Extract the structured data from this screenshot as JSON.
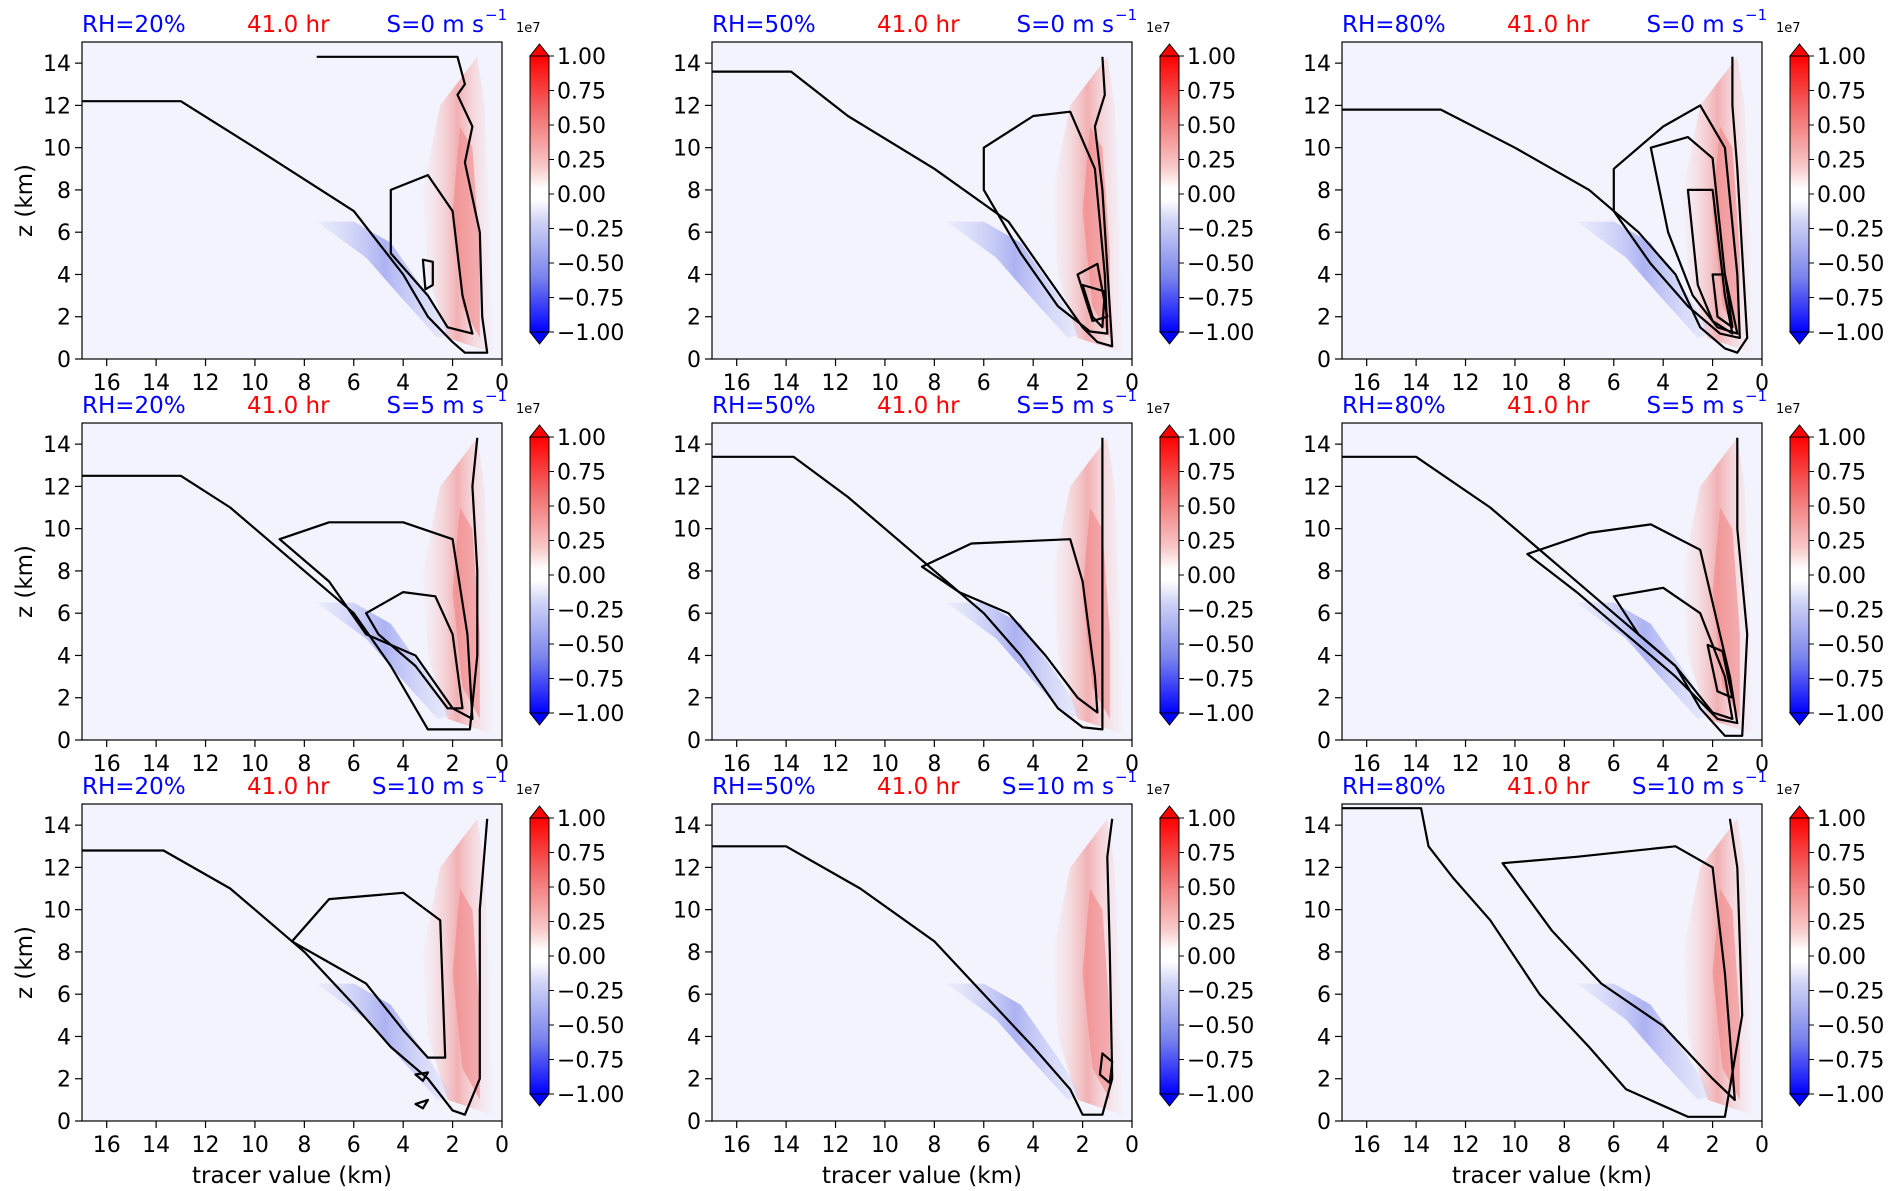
{
  "figure": {
    "time_label": "41.0 hr",
    "y_axis_label": "z (km)",
    "x_axis_label": "tracer value (km)",
    "colorbar_exponent": "1e7",
    "colors": {
      "rh_title": "#0000ff",
      "time_title": "#ff0000",
      "shear_title": "#0000ff",
      "neg_strong": "#0000ff",
      "pos_strong": "#ff0000",
      "background": "#f2f3fd"
    }
  },
  "chart_data": [
    {
      "type": "heatmap",
      "rh": "RH=20%",
      "shear": "S=0 m s",
      "shear_exp": "−1",
      "xlim": [
        17,
        0
      ],
      "ylim": [
        0,
        15
      ],
      "xticks": [
        "16",
        "14",
        "12",
        "10",
        "8",
        "6",
        "4",
        "2",
        "0"
      ],
      "yticks": [
        "0",
        "2",
        "4",
        "6",
        "8",
        "10",
        "12",
        "14"
      ],
      "colorbar": {
        "ticks": [
          "1.00",
          "0.75",
          "0.50",
          "0.25",
          "0.00",
          "−0.25",
          "−0.50",
          "−0.75",
          "−1.00"
        ],
        "range": [
          -1,
          1
        ]
      }
    },
    {
      "type": "heatmap",
      "rh": "RH=50%",
      "shear": "S=0 m s",
      "shear_exp": "−1",
      "xlim": [
        17,
        0
      ],
      "ylim": [
        0,
        15
      ],
      "xticks": [
        "16",
        "14",
        "12",
        "10",
        "8",
        "6",
        "4",
        "2",
        "0"
      ],
      "yticks": [
        "0",
        "2",
        "4",
        "6",
        "8",
        "10",
        "12",
        "14"
      ],
      "colorbar": {
        "ticks": [
          "1.00",
          "0.75",
          "0.50",
          "0.25",
          "0.00",
          "−0.25",
          "−0.50",
          "−0.75",
          "−1.00"
        ],
        "range": [
          -1,
          1
        ]
      }
    },
    {
      "type": "heatmap",
      "rh": "RH=80%",
      "shear": "S=0 m s",
      "shear_exp": "−1",
      "xlim": [
        17,
        0
      ],
      "ylim": [
        0,
        15
      ],
      "xticks": [
        "16",
        "14",
        "12",
        "10",
        "8",
        "6",
        "4",
        "2",
        "0"
      ],
      "yticks": [
        "0",
        "2",
        "4",
        "6",
        "8",
        "10",
        "12",
        "14"
      ],
      "colorbar": {
        "ticks": [
          "1.00",
          "0.75",
          "0.50",
          "0.25",
          "0.00",
          "−0.25",
          "−0.50",
          "−0.75",
          "−1.00"
        ],
        "range": [
          -1,
          1
        ]
      }
    },
    {
      "type": "heatmap",
      "rh": "RH=20%",
      "shear": "S=5 m s",
      "shear_exp": "−1",
      "xlim": [
        17,
        0
      ],
      "ylim": [
        0,
        15
      ],
      "xticks": [
        "16",
        "14",
        "12",
        "10",
        "8",
        "6",
        "4",
        "2",
        "0"
      ],
      "yticks": [
        "0",
        "2",
        "4",
        "6",
        "8",
        "10",
        "12",
        "14"
      ],
      "colorbar": {
        "ticks": [
          "1.00",
          "0.75",
          "0.50",
          "0.25",
          "0.00",
          "−0.25",
          "−0.50",
          "−0.75",
          "−1.00"
        ],
        "range": [
          -1,
          1
        ]
      }
    },
    {
      "type": "heatmap",
      "rh": "RH=50%",
      "shear": "S=5 m s",
      "shear_exp": "−1",
      "xlim": [
        17,
        0
      ],
      "ylim": [
        0,
        15
      ],
      "xticks": [
        "16",
        "14",
        "12",
        "10",
        "8",
        "6",
        "4",
        "2",
        "0"
      ],
      "yticks": [
        "0",
        "2",
        "4",
        "6",
        "8",
        "10",
        "12",
        "14"
      ],
      "colorbar": {
        "ticks": [
          "1.00",
          "0.75",
          "0.50",
          "0.25",
          "0.00",
          "−0.25",
          "−0.50",
          "−0.75",
          "−1.00"
        ],
        "range": [
          -1,
          1
        ]
      }
    },
    {
      "type": "heatmap",
      "rh": "RH=80%",
      "shear": "S=5 m s",
      "shear_exp": "−1",
      "xlim": [
        17,
        0
      ],
      "ylim": [
        0,
        15
      ],
      "xticks": [
        "16",
        "14",
        "12",
        "10",
        "8",
        "6",
        "4",
        "2",
        "0"
      ],
      "yticks": [
        "0",
        "2",
        "4",
        "6",
        "8",
        "10",
        "12",
        "14"
      ],
      "colorbar": {
        "ticks": [
          "1.00",
          "0.75",
          "0.50",
          "0.25",
          "0.00",
          "−0.25",
          "−0.50",
          "−0.75",
          "−1.00"
        ],
        "range": [
          -1,
          1
        ]
      }
    },
    {
      "type": "heatmap",
      "rh": "RH=20%",
      "shear": "S=10 m s",
      "shear_exp": "−1",
      "xlim": [
        17,
        0
      ],
      "ylim": [
        0,
        15
      ],
      "xticks": [
        "16",
        "14",
        "12",
        "10",
        "8",
        "6",
        "4",
        "2",
        "0"
      ],
      "yticks": [
        "0",
        "2",
        "4",
        "6",
        "8",
        "10",
        "12",
        "14"
      ],
      "colorbar": {
        "ticks": [
          "1.00",
          "0.75",
          "0.50",
          "0.25",
          "0.00",
          "−0.25",
          "−0.50",
          "−0.75",
          "−1.00"
        ],
        "range": [
          -1,
          1
        ]
      }
    },
    {
      "type": "heatmap",
      "rh": "RH=50%",
      "shear": "S=10 m s",
      "shear_exp": "−1",
      "xlim": [
        17,
        0
      ],
      "ylim": [
        0,
        15
      ],
      "xticks": [
        "16",
        "14",
        "12",
        "10",
        "8",
        "6",
        "4",
        "2",
        "0"
      ],
      "yticks": [
        "0",
        "2",
        "4",
        "6",
        "8",
        "10",
        "12",
        "14"
      ],
      "colorbar": {
        "ticks": [
          "1.00",
          "0.75",
          "0.50",
          "0.25",
          "0.00",
          "−0.25",
          "−0.50",
          "−0.75",
          "−1.00"
        ],
        "range": [
          -1,
          1
        ]
      }
    },
    {
      "type": "heatmap",
      "rh": "RH=80%",
      "shear": "S=10 m s",
      "shear_exp": "−1",
      "xlim": [
        17,
        0
      ],
      "ylim": [
        0,
        15
      ],
      "xticks": [
        "16",
        "14",
        "12",
        "10",
        "8",
        "6",
        "4",
        "2",
        "0"
      ],
      "yticks": [
        "0",
        "2",
        "4",
        "6",
        "8",
        "10",
        "12",
        "14"
      ],
      "colorbar": {
        "ticks": [
          "1.00",
          "0.75",
          "0.50",
          "0.25",
          "0.00",
          "−0.25",
          "−0.50",
          "−0.75",
          "−1.00"
        ],
        "range": [
          -1,
          1
        ]
      }
    }
  ]
}
